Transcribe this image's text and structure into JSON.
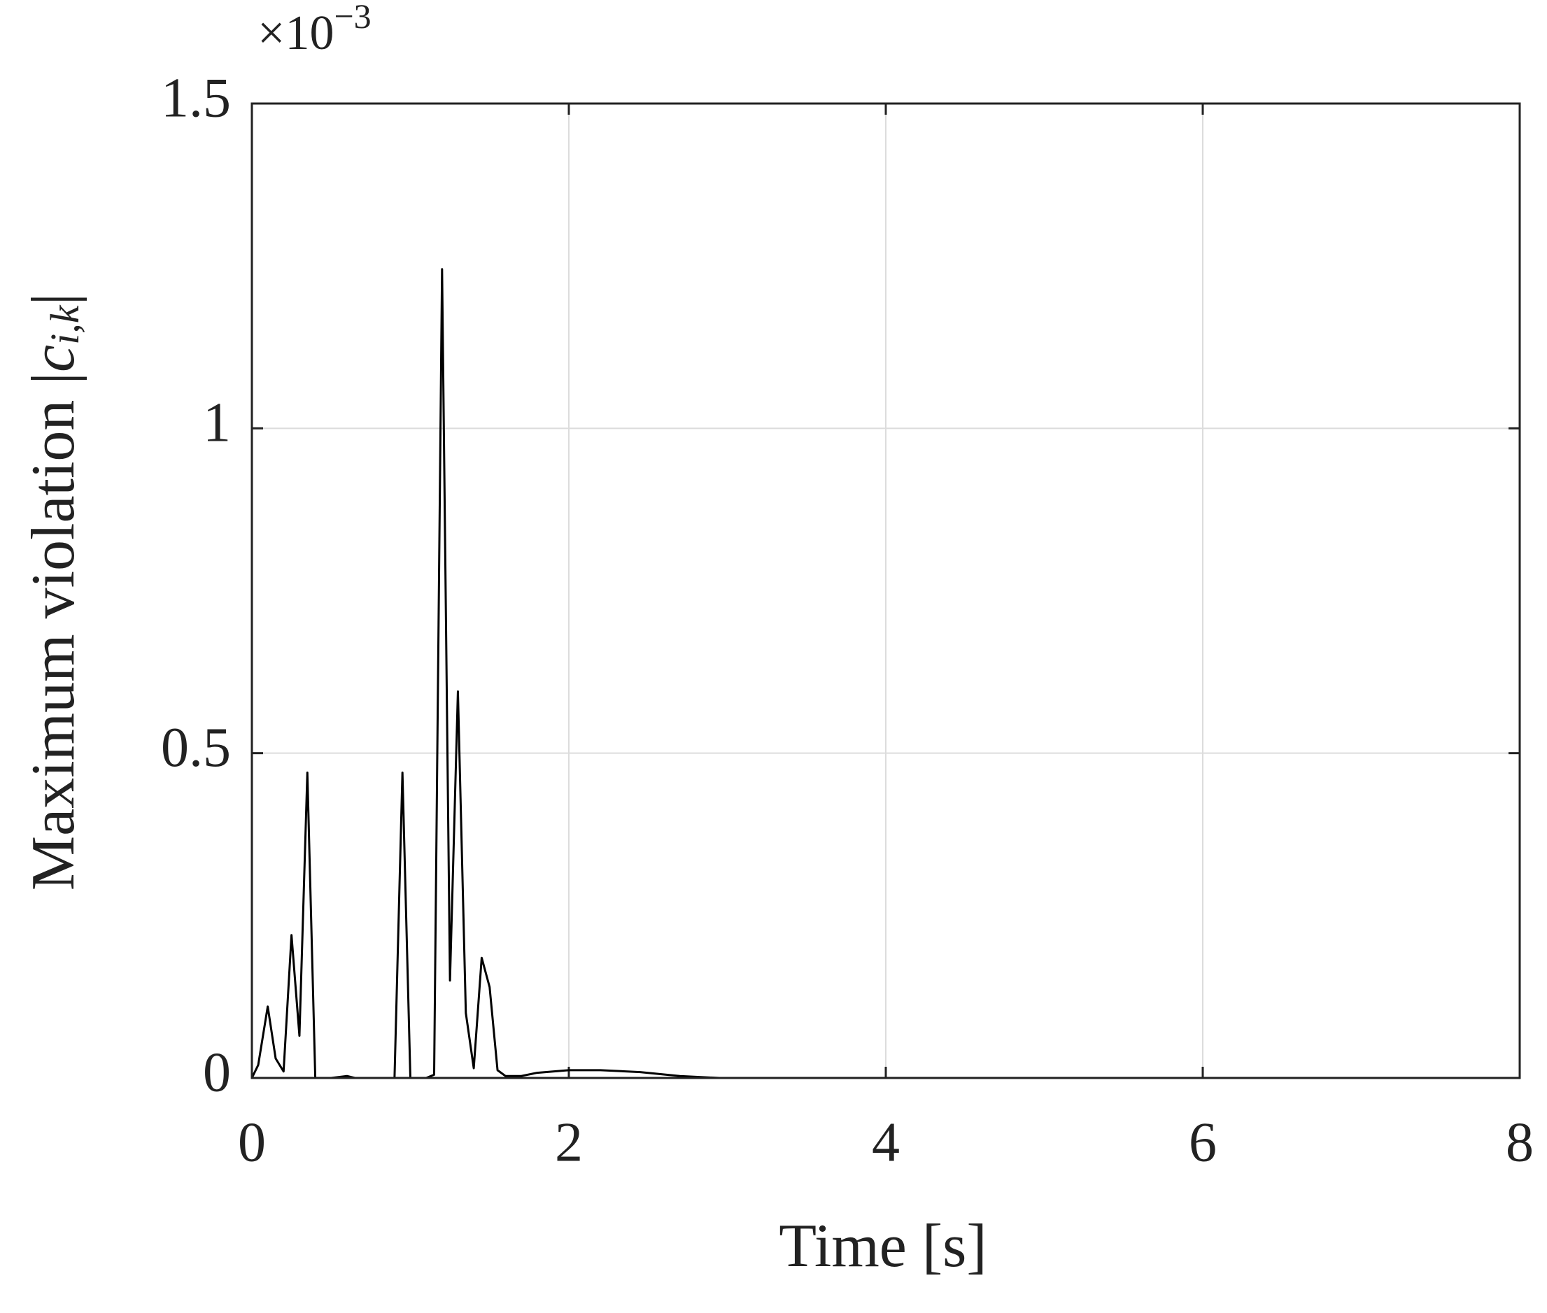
{
  "chart_data": {
    "type": "line",
    "xlabel": "Time [s]",
    "ylabel_parts": [
      "Maximum violation |",
      "c",
      "i,k",
      "|"
    ],
    "y_multiplier": {
      "base": "×10",
      "exponent": "−3"
    },
    "x": [
      0,
      0.04,
      0.1,
      0.15,
      0.2,
      0.25,
      0.3,
      0.35,
      0.4,
      0.5,
      0.6,
      0.65,
      0.9,
      0.95,
      1.0,
      1.1,
      1.15,
      1.2,
      1.25,
      1.3,
      1.35,
      1.4,
      1.45,
      1.5,
      1.55,
      1.6,
      1.7,
      1.8,
      2.0,
      2.2,
      2.45,
      2.7,
      2.95,
      8
    ],
    "series": [
      {
        "color": "#000000",
        "values": [
          0,
          0.02,
          0.11,
          0.03,
          0.01,
          0.22,
          0.065,
          0.47,
          0,
          0,
          0.003,
          0,
          0,
          0.47,
          0,
          0,
          0.005,
          1.245,
          0.15,
          0.595,
          0.1,
          0.015,
          0.185,
          0.14,
          0.012,
          0.003,
          0.003,
          0.008,
          0.012,
          0.012,
          0.009,
          0.003,
          0,
          0
        ]
      }
    ],
    "xlim": [
      0,
      8
    ],
    "xticks": [
      0,
      2,
      4,
      6,
      8
    ],
    "ylim": [
      0,
      1.5
    ],
    "yticks": [
      0,
      0.5,
      1,
      1.5
    ],
    "grid": true
  }
}
